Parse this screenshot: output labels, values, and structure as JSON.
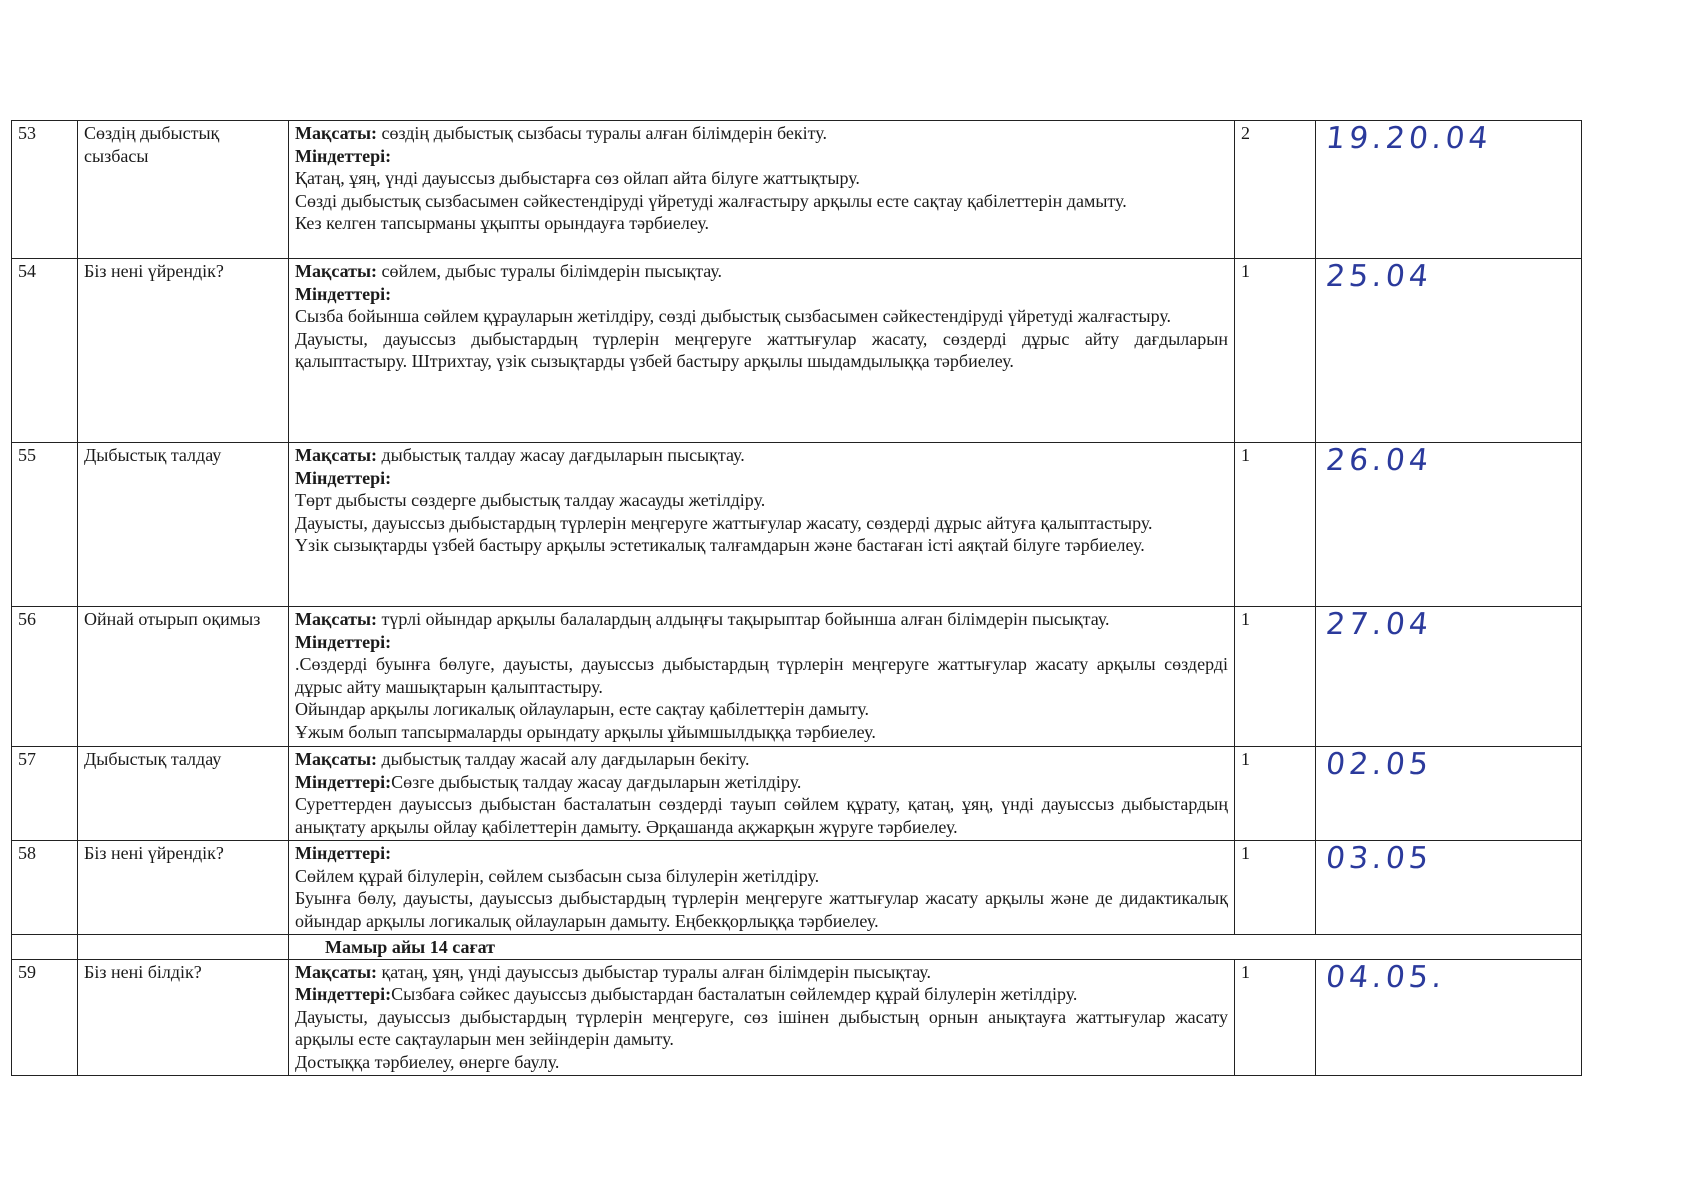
{
  "rows": [
    {
      "num": "53",
      "topic": "Сөздің дыбыстық сызбасы",
      "goal_label": "Мақсаты:",
      "goal": " сөздің дыбыстық сызбасы туралы алған білімдерін бекіту.",
      "tasks_label": "Міндеттері:",
      "tasks_inline": "",
      "paragraphs": [
        "Қатаң, ұяң, үнді дауыссыз дыбыстарға сөз ойлап айта білуге жаттықтыру.",
        "Сөзді дыбыстық сызбасымен сәйкестендіруді үйретуді жалғастыру арқылы есте сақтау қабілеттерін дамыту.",
        "Кез келген тапсырманы ұқыпты орындауға тәрбиелеу."
      ],
      "hours": "2",
      "date": "19.20.04"
    },
    {
      "num": "54",
      "topic": "Біз нені үйрендік?",
      "goal_label": "Мақсаты:",
      "goal": " сөйлем, дыбыс туралы білімдерін пысықтау.",
      "tasks_label": "Міндеттері:",
      "tasks_inline": "",
      "paragraphs": [
        "Сызба бойынша сөйлем құрауларын жетілдіру, сөзді дыбыстық сызбасымен сәйкестендіруді үйретуді жалғастыру.",
        "Дауысты, дауыссыз дыбыстардың түрлерін меңгеруге жаттығулар жасату, сөздерді дұрыс айту дағдыларын қалыптастыру.  Штрихтау, үзік сызықтарды үзбей бастыру арқылы шыдамдылыққа тәрбиелеу."
      ],
      "hours": "1",
      "date": "25.04"
    },
    {
      "num": "55",
      "topic": "Дыбыстық талдау",
      "goal_label": "Мақсаты:",
      "goal": " дыбыстық талдау жасау дағдыларын пысықтау.",
      "tasks_label": "Міндеттері:",
      "tasks_inline": "",
      "paragraphs": [
        "Төрт дыбысты сөздерге дыбыстық талдау жасауды жетілдіру.",
        "Дауысты, дауыссыз дыбыстардың түрлерін меңгеруге жаттығулар жасату, сөздерді дұрыс айтуға қалыптастыру.",
        "Үзік сызықтарды үзбей бастыру арқылы эстетикалық талғамдарын және бастаған істі аяқтай білуге тәрбиелеу."
      ],
      "hours": "1",
      "date": "26.04"
    },
    {
      "num": "56",
      "topic": "Ойнай отырып оқимыз",
      "goal_label": "Мақсаты:",
      "goal": " түрлі ойындар арқылы балалардың алдыңғы тақырыптар бойынша алған білімдерін пысықтау.",
      "tasks_label": "Міндеттері:",
      "tasks_inline": "",
      "paragraphs": [
        ".Сөздерді буынға бөлуге, дауысты, дауыссыз дыбыстардың түрлерін меңгеруге жаттығулар жасату арқылы сөздерді дұрыс айту машықтарын қалыптастыру.",
        "Ойындар арқылы логикалық ойлауларын, есте сақтау қабілеттерін дамыту.",
        "Ұжым болып тапсырмаларды орындату арқылы ұйымшылдыққа  тәрбиелеу."
      ],
      "hours": "1",
      "date": "27.04"
    },
    {
      "num": "57",
      "topic": "Дыбыстық талдау",
      "goal_label": "Мақсаты:",
      "goal": " дыбыстық талдау жасай алу дағдыларын бекіту.",
      "tasks_label": "Міндеттері:",
      "tasks_inline": "Сөзге дыбыстық талдау жасау дағдыларын жетілдіру.",
      "paragraphs": [
        "Суреттерден дауыссыз дыбыстан басталатын сөздерді тауып сөйлем құрату, қатаң, ұяң, үнді дауыссыз дыбыстардың анықтату арқылы ойлау қабілеттерін дамыту.   Әрқашанда ақжарқын жүруге тәрбиелеу."
      ],
      "hours": "1",
      "date": "02.05"
    },
    {
      "num": "58",
      "topic": "Біз нені үйрендік?",
      "goal_label": "",
      "goal": "",
      "tasks_label": "Міндеттері:",
      "tasks_inline": "",
      "paragraphs": [
        " Сөйлем құрай білулерін, сөйлем сызбасын сыза білулерін жетілдіру.",
        "Буынға бөлу, дауысты, дауыссыз дыбыстардың түрлерін меңгеруге жаттығулар жасату арқылы және де дидактикалық ойындар арқылы  логикалық ойлауларын дамыту.  Еңбекқорлыққа тәрбиелеу."
      ],
      "hours": "1",
      "date": "03.05"
    }
  ],
  "month_row": "Мамыр  айы 14 сағат",
  "last_row": {
    "num": "59",
    "topic": "Біз нені білдік?",
    "goal_label": "Мақсаты:",
    "goal": " қатаң, ұяң, үнді дауыссыз дыбыстар туралы алған білімдерін пысықтау.",
    "tasks_label": "Міндеттері:",
    "tasks_inline": "Сызбаға сәйкес дауыссыз дыбыстардан басталатын сөйлемдер құрай білулерін жетілдіру.",
    "paragraphs": [
      "Дауысты, дауыссыз дыбыстардың түрлерін меңгеруге, сөз ішінен дыбыстың орнын анықтауға жаттығулар жасату арқылы есте сақтауларын мен зейіндерін дамыту.",
      "Достыққа  тәрбиелеу, өнерге баулу."
    ],
    "hours": "1",
    "date": "04.05."
  },
  "colors": {
    "handwriting": "#2b3a9c",
    "ink": "#1a1a1a"
  }
}
